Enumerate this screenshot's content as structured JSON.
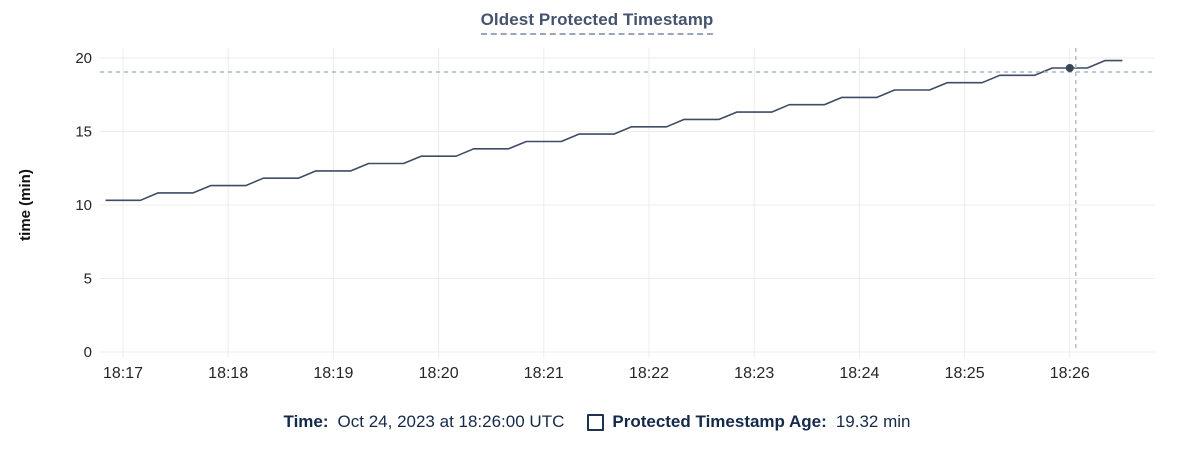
{
  "title": "Oldest Protected Timestamp",
  "legend": {
    "time_label": "Time:",
    "time_value": "Oct 24, 2023 at 18:26:00 UTC",
    "series_label": "Protected Timestamp Age:",
    "series_value": "19.32 min"
  },
  "chart_data": {
    "type": "line",
    "title": "Oldest Protected Timestamp",
    "xlabel": "",
    "ylabel": "time (min)",
    "ylim": [
      0,
      20
    ],
    "y_ticks": [
      0,
      5,
      10,
      15,
      20
    ],
    "x_ticks": [
      "18:17",
      "18:18",
      "18:19",
      "18:20",
      "18:21",
      "18:22",
      "18:23",
      "18:24",
      "18:25",
      "18:26"
    ],
    "x_range": [
      "18:16:50",
      "18:26:30"
    ],
    "grid": true,
    "legend_position": "bottom",
    "hover_point": {
      "t": "18:26:00",
      "v": 19.32,
      "crosshair": true
    },
    "series": [
      {
        "name": "Protected Timestamp Age",
        "unit": "min",
        "points": [
          [
            "18:16:50",
            10.32
          ],
          [
            "18:17:00",
            10.32
          ],
          [
            "18:17:10",
            10.32
          ],
          [
            "18:17:20",
            10.82
          ],
          [
            "18:17:30",
            10.82
          ],
          [
            "18:17:40",
            10.82
          ],
          [
            "18:17:50",
            11.32
          ],
          [
            "18:18:00",
            11.32
          ],
          [
            "18:18:10",
            11.32
          ],
          [
            "18:18:20",
            11.82
          ],
          [
            "18:18:30",
            11.82
          ],
          [
            "18:18:40",
            11.82
          ],
          [
            "18:18:50",
            12.32
          ],
          [
            "18:19:00",
            12.32
          ],
          [
            "18:19:10",
            12.32
          ],
          [
            "18:19:20",
            12.82
          ],
          [
            "18:19:30",
            12.82
          ],
          [
            "18:19:40",
            12.82
          ],
          [
            "18:19:50",
            13.32
          ],
          [
            "18:20:00",
            13.32
          ],
          [
            "18:20:10",
            13.32
          ],
          [
            "18:20:20",
            13.82
          ],
          [
            "18:20:30",
            13.82
          ],
          [
            "18:20:40",
            13.82
          ],
          [
            "18:20:50",
            14.32
          ],
          [
            "18:21:00",
            14.32
          ],
          [
            "18:21:10",
            14.32
          ],
          [
            "18:21:20",
            14.82
          ],
          [
            "18:21:30",
            14.82
          ],
          [
            "18:21:40",
            14.82
          ],
          [
            "18:21:50",
            15.32
          ],
          [
            "18:22:00",
            15.32
          ],
          [
            "18:22:10",
            15.32
          ],
          [
            "18:22:20",
            15.82
          ],
          [
            "18:22:30",
            15.82
          ],
          [
            "18:22:40",
            15.82
          ],
          [
            "18:22:50",
            16.32
          ],
          [
            "18:23:00",
            16.32
          ],
          [
            "18:23:10",
            16.32
          ],
          [
            "18:23:20",
            16.82
          ],
          [
            "18:23:30",
            16.82
          ],
          [
            "18:23:40",
            16.82
          ],
          [
            "18:23:50",
            17.32
          ],
          [
            "18:24:00",
            17.32
          ],
          [
            "18:24:10",
            17.32
          ],
          [
            "18:24:20",
            17.82
          ],
          [
            "18:24:30",
            17.82
          ],
          [
            "18:24:40",
            17.82
          ],
          [
            "18:24:50",
            18.32
          ],
          [
            "18:25:00",
            18.32
          ],
          [
            "18:25:10",
            18.32
          ],
          [
            "18:25:20",
            18.82
          ],
          [
            "18:25:30",
            18.82
          ],
          [
            "18:25:40",
            18.82
          ],
          [
            "18:25:50",
            19.32
          ],
          [
            "18:26:00",
            19.32
          ],
          [
            "18:26:10",
            19.32
          ],
          [
            "18:26:20",
            19.82
          ],
          [
            "18:26:30",
            19.82
          ]
        ]
      }
    ],
    "colors": {
      "line": "#3f4c66",
      "hover_dot": "#394455",
      "grid": "#ececec",
      "crosshair": "#a9bac7",
      "axis_text": "#262626",
      "axis_title": "#111111",
      "title": "#46536e",
      "legend_text": "#15294b"
    }
  }
}
